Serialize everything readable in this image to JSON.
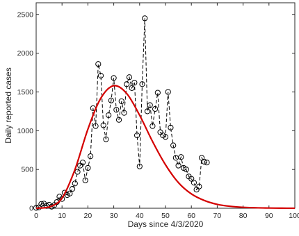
{
  "chart_data": {
    "type": "line",
    "title": "",
    "xlabel": "Days since 4/3/2020",
    "ylabel": "Daily reported cases",
    "xlim": [
      0,
      100
    ],
    "ylim": [
      0,
      2650
    ],
    "xticks": [
      0,
      10,
      20,
      30,
      40,
      50,
      60,
      70,
      80,
      90,
      100
    ],
    "yticks": [
      0,
      500,
      1000,
      1500,
      2000,
      2500
    ],
    "grid": false,
    "legend": "none",
    "series": [
      {
        "style": "dashed black line with open circle markers",
        "color": "#000000",
        "x": [
          0,
          1,
          2,
          3,
          4,
          5,
          6,
          7,
          8,
          9,
          10,
          11,
          12,
          13,
          14,
          15,
          16,
          17,
          18,
          19,
          20,
          21,
          22,
          23,
          24,
          25,
          26,
          27,
          28,
          29,
          30,
          31,
          32,
          33,
          34,
          35,
          36,
          37,
          38,
          39,
          40,
          41,
          42,
          43,
          44,
          45,
          46,
          47,
          48,
          49,
          50,
          51,
          52,
          53,
          54,
          55,
          56,
          57,
          58,
          59,
          60,
          61,
          62,
          63,
          64,
          65,
          66
        ],
        "y": [
          5,
          10,
          55,
          60,
          30,
          45,
          20,
          40,
          80,
          150,
          120,
          200,
          170,
          190,
          250,
          320,
          470,
          550,
          590,
          360,
          520,
          670,
          1290,
          1060,
          1860,
          1710,
          1070,
          890,
          1200,
          1390,
          1680,
          1270,
          1140,
          1380,
          1230,
          1600,
          1690,
          1550,
          1620,
          940,
          540,
          1600,
          2450,
          1250,
          1330,
          1060,
          1280,
          1490,
          980,
          940,
          920,
          1500,
          1040,
          810,
          650,
          550,
          660,
          520,
          500,
          410,
          380,
          330,
          240,
          280,
          650,
          600,
          590
        ]
      },
      {
        "style": "solid red curve",
        "color": "#d40000",
        "x": [
          0,
          5,
          10,
          15,
          20,
          25,
          30,
          35,
          40,
          45,
          50,
          55,
          60,
          65,
          70,
          75,
          80,
          85,
          90,
          95,
          100
        ],
        "y": [
          0,
          15,
          130,
          500,
          1020,
          1420,
          1580,
          1480,
          1200,
          860,
          560,
          330,
          185,
          100,
          50,
          25,
          12,
          6,
          3,
          1,
          0
        ]
      }
    ]
  }
}
